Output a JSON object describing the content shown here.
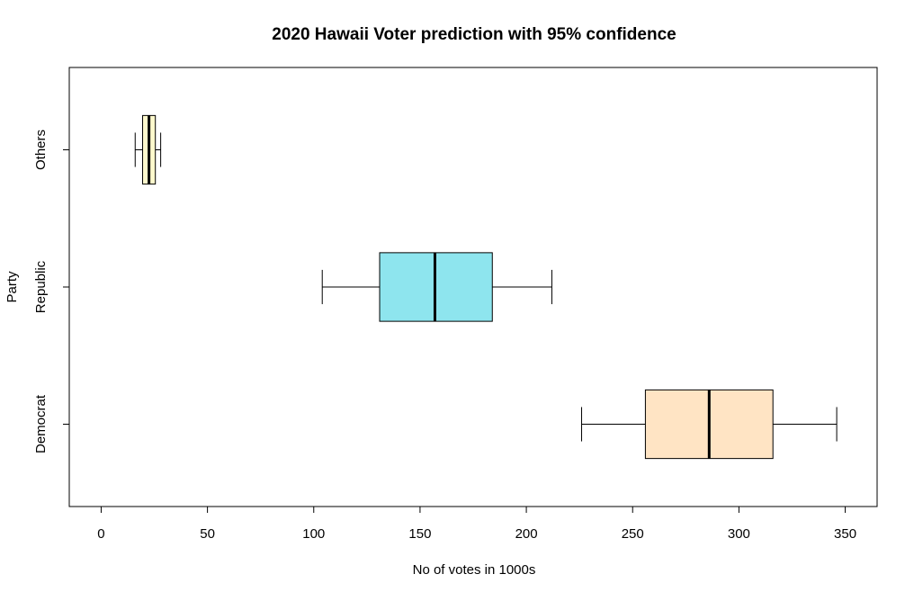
{
  "chart_data": {
    "type": "boxplot",
    "orientation": "horizontal",
    "title": "2020 Hawaii Voter prediction with 95% confidence",
    "xlabel": "No of votes in 1000s",
    "ylabel": "Party",
    "xlim": [
      -15,
      365
    ],
    "xticks": [
      0,
      50,
      100,
      150,
      200,
      250,
      300,
      350
    ],
    "grid": false,
    "categories": [
      "Democrat",
      "Republic",
      "Others"
    ],
    "boxes": [
      {
        "category": "Democrat",
        "whisker_low": 226,
        "q1": 256,
        "median": 286,
        "q3": 316,
        "whisker_high": 346,
        "color": "#FFE4C4"
      },
      {
        "category": "Republic",
        "whisker_low": 104,
        "q1": 131,
        "median": 157,
        "q3": 184,
        "whisker_high": 212,
        "color": "#8EE5EE"
      },
      {
        "category": "Others",
        "whisker_low": 16,
        "q1": 19.5,
        "median": 22.5,
        "q3": 25.5,
        "whisker_high": 28,
        "color": "#FFFACD"
      }
    ]
  }
}
